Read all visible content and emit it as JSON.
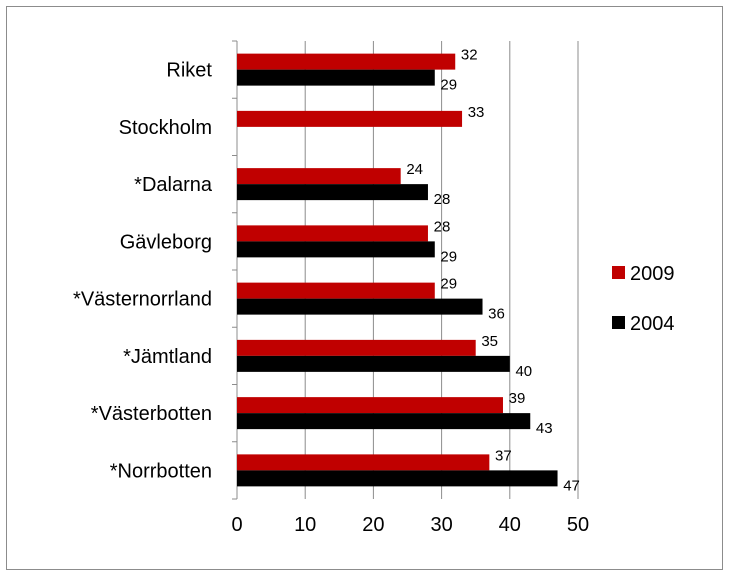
{
  "chart_data": {
    "type": "bar",
    "orientation": "horizontal",
    "categories": [
      "Riket",
      "Stockholm",
      "*Dalarna",
      "Gävleborg",
      "*Västernorrland",
      "*Jämtland",
      "*Västerbotten",
      "*Norrbotten"
    ],
    "series": [
      {
        "name": "2009",
        "color": "#c00000",
        "values": [
          32,
          33,
          24,
          28,
          29,
          35,
          39,
          37
        ]
      },
      {
        "name": "2004",
        "color": "#000000",
        "values": [
          29,
          null,
          28,
          29,
          36,
          40,
          43,
          47
        ]
      }
    ],
    "xlim": [
      0,
      50
    ],
    "xticks": [
      0,
      10,
      20,
      30,
      40,
      50
    ],
    "grid": "vertical",
    "legend_position": "right",
    "title": "",
    "xlabel": "",
    "ylabel": ""
  }
}
